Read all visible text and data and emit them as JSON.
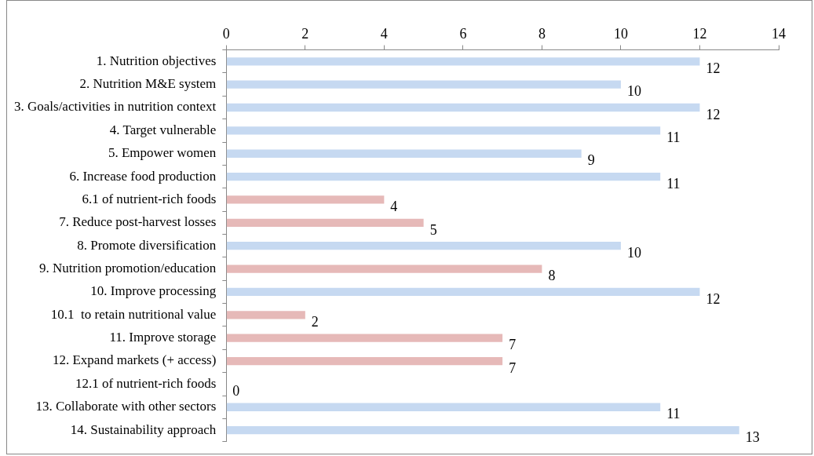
{
  "chart_data": {
    "type": "bar",
    "orientation": "horizontal",
    "categories": [
      "1. Nutrition objectives",
      "2. Nutrition M&E system",
      "3. Goals/activities in nutrition context",
      "4. Target vulnerable",
      "5. Empower women",
      "6. Increase food production",
      "6.1 of nutrient-rich foods",
      "7. Reduce post-harvest losses",
      "8. Promote diversification",
      "9. Nutrition promotion/education",
      "10. Improve processing",
      "10.1  to retain nutritional value",
      "11. Improve storage",
      "12. Expand markets (+ access)",
      "12.1 of nutrient-rich foods",
      "13. Collaborate with other sectors",
      "14. Sustainability approach"
    ],
    "values": [
      12,
      10,
      12,
      11,
      9,
      11,
      4,
      5,
      10,
      8,
      12,
      2,
      7,
      7,
      0,
      11,
      13
    ],
    "colors": [
      "#c6d9f1",
      "#c6d9f1",
      "#c6d9f1",
      "#c6d9f1",
      "#c6d9f1",
      "#c6d9f1",
      "#e6b9b8",
      "#e6b9b8",
      "#c6d9f1",
      "#e6b9b8",
      "#c6d9f1",
      "#e6b9b8",
      "#e6b9b8",
      "#e6b9b8",
      "#e6b9b8",
      "#c6d9f1",
      "#c6d9f1"
    ],
    "xlim": [
      0,
      14
    ],
    "xticks": [
      0,
      2,
      4,
      6,
      8,
      10,
      12,
      14
    ],
    "data_labels": true,
    "grid": false,
    "legend": false
  }
}
